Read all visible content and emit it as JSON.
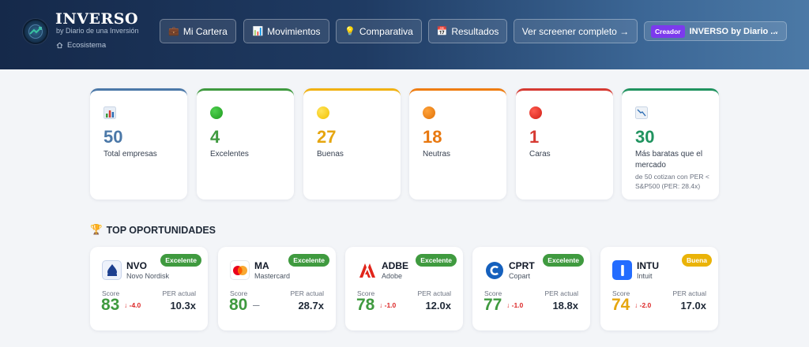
{
  "header": {
    "brand_title": "INVERSO",
    "brand_subtitle": "by Diario de una Inversión",
    "ecosystem_label": "Ecosistema",
    "nav": {
      "cartera": "Mi Cartera",
      "movimientos": "Movimientos",
      "comparativa": "Comparativa",
      "resultados": "Resultados",
      "screener": "Ver screener completo →"
    },
    "creator_badge": "Creador",
    "creator_name": "INVERSO by Diario ..."
  },
  "stats": [
    {
      "value": "50",
      "label": "Total empresas",
      "color": "#4b78a8",
      "icon": "bar-chart-icon"
    },
    {
      "value": "4",
      "label": "Excelentes",
      "color": "#3f9a3f",
      "icon": "green-circle-icon"
    },
    {
      "value": "27",
      "label": "Buenas",
      "color": "#e6a60f",
      "icon": "yellow-circle-icon"
    },
    {
      "value": "18",
      "label": "Neutras",
      "color": "#e8780f",
      "icon": "orange-circle-icon"
    },
    {
      "value": "1",
      "label": "Caras",
      "color": "#d63a32",
      "icon": "red-circle-icon"
    },
    {
      "value": "30",
      "label": "Más baratas que el mercado",
      "note": "de 50 cotizan con PER < S&P500 (PER: 28.4x)",
      "color": "#20935f",
      "icon": "trend-down-chart-icon"
    }
  ],
  "section": {
    "title": "TOP OPORTUNIDADES",
    "icon": "trophy-icon"
  },
  "opportunities": [
    {
      "ticker": "NVO",
      "company": "Novo Nordisk",
      "badge": "Excelente",
      "badge_color": "#3f9a3f",
      "score_label": "Score",
      "score": "83",
      "score_color": "#3f9a3f",
      "delta": "↓ -4.0",
      "delta_color": "#dc2626",
      "per_label": "PER actual",
      "per": "10.3x"
    },
    {
      "ticker": "MA",
      "company": "Mastercard",
      "badge": "Excelente",
      "badge_color": "#3f9a3f",
      "score_label": "Score",
      "score": "80",
      "score_color": "#3f9a3f",
      "delta": "—",
      "delta_color": "#6b7280",
      "per_label": "PER actual",
      "per": "28.7x"
    },
    {
      "ticker": "ADBE",
      "company": "Adobe",
      "badge": "Excelente",
      "badge_color": "#3f9a3f",
      "score_label": "Score",
      "score": "78",
      "score_color": "#3f9a3f",
      "delta": "↓ -1.0",
      "delta_color": "#dc2626",
      "per_label": "PER actual",
      "per": "12.0x"
    },
    {
      "ticker": "CPRT",
      "company": "Copart",
      "badge": "Excelente",
      "badge_color": "#3f9a3f",
      "score_label": "Score",
      "score": "77",
      "score_color": "#3f9a3f",
      "delta": "↓ -1.0",
      "delta_color": "#dc2626",
      "per_label": "PER actual",
      "per": "18.8x"
    },
    {
      "ticker": "INTU",
      "company": "Intuit",
      "badge": "Buena",
      "badge_color": "#eab308",
      "score_label": "Score",
      "score": "74",
      "score_color": "#e6a60f",
      "delta": "↓ -2.0",
      "delta_color": "#dc2626",
      "per_label": "PER actual",
      "per": "17.0x"
    }
  ]
}
